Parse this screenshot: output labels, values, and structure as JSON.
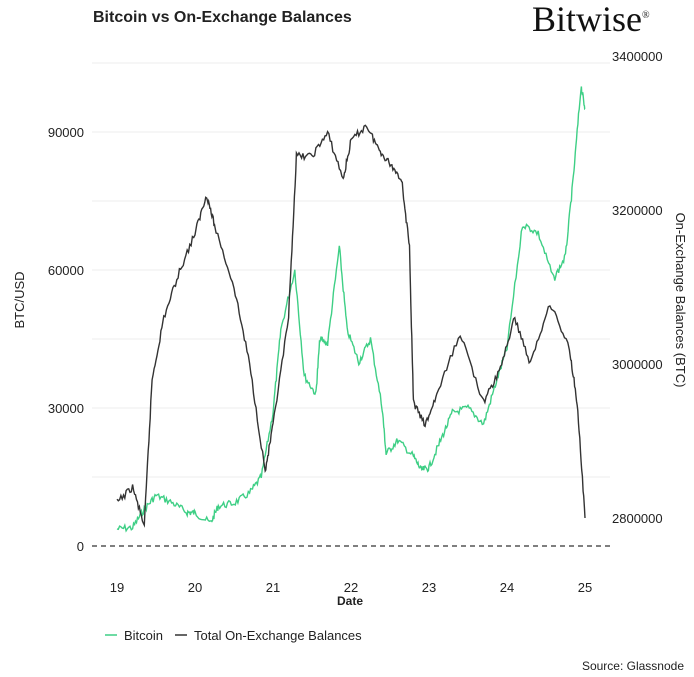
{
  "title": "Bitcoin vs On-Exchange Balances",
  "logo": "Bitwise",
  "source": "Source: Glassnode",
  "chart_data": {
    "type": "line",
    "title": "Bitcoin vs On-Exchange Balances",
    "xlabel": "Date",
    "ylabel": "BTC/USD",
    "y2label": "On-Exchange Balances (BTC)",
    "xticks": [
      "19",
      "20",
      "21",
      "22",
      "23",
      "24",
      "25"
    ],
    "yticks": [
      "0",
      "30000",
      "60000",
      "90000"
    ],
    "y2ticks": [
      "2800000",
      "3000000",
      "3200000",
      "3400000"
    ],
    "xlim": [
      18.9,
      25.3
    ],
    "ylim": [
      0,
      105000
    ],
    "y2lim": [
      2764000,
      3400000
    ],
    "grid": true,
    "legend": "bottom-left",
    "series": [
      {
        "name": "Bitcoin",
        "axis": "left",
        "color": "#3ecf85",
        "x": [
          19.0,
          19.2,
          19.35,
          19.5,
          19.7,
          19.9,
          20.0,
          20.2,
          20.3,
          20.5,
          20.7,
          20.85,
          21.0,
          21.1,
          21.28,
          21.4,
          21.55,
          21.6,
          21.7,
          21.85,
          21.95,
          22.1,
          22.25,
          22.4,
          22.45,
          22.6,
          22.8,
          22.9,
          23.0,
          23.15,
          23.3,
          23.5,
          23.7,
          23.85,
          24.0,
          24.2,
          24.4,
          24.6,
          24.75,
          24.85,
          24.95,
          25.0
        ],
        "y": [
          3700,
          4000,
          8000,
          11000,
          9500,
          7300,
          7200,
          5000,
          8700,
          9300,
          11500,
          15000,
          29000,
          47000,
          60000,
          37000,
          33000,
          45000,
          44000,
          65000,
          47000,
          40000,
          45000,
          30000,
          20000,
          23000,
          19500,
          16500,
          17000,
          23000,
          29000,
          30000,
          26500,
          35000,
          43000,
          70000,
          68000,
          58000,
          63000,
          80000,
          100000,
          95000
        ]
      },
      {
        "name": "Total On-Exchange Balances",
        "axis": "right",
        "color": "#333333",
        "x": [
          19.0,
          19.2,
          19.35,
          19.45,
          19.6,
          19.8,
          20.0,
          20.15,
          20.25,
          20.5,
          20.7,
          20.9,
          21.0,
          21.2,
          21.3,
          21.5,
          21.7,
          21.9,
          22.0,
          22.2,
          22.35,
          22.5,
          22.65,
          22.75,
          22.8,
          22.95,
          23.1,
          23.4,
          23.7,
          23.9,
          24.1,
          24.3,
          24.55,
          24.8,
          24.9,
          25.0
        ],
        "y": [
          2820000,
          2840000,
          2790000,
          2980000,
          3060000,
          3120000,
          3170000,
          3220000,
          3180000,
          3100000,
          3000000,
          2860000,
          2920000,
          3060000,
          3270000,
          3270000,
          3300000,
          3240000,
          3290000,
          3310000,
          3280000,
          3260000,
          3240000,
          3150000,
          2950000,
          2920000,
          2960000,
          3040000,
          2950000,
          2990000,
          3060000,
          3000000,
          3080000,
          3020000,
          2950000,
          2800000
        ]
      }
    ]
  }
}
